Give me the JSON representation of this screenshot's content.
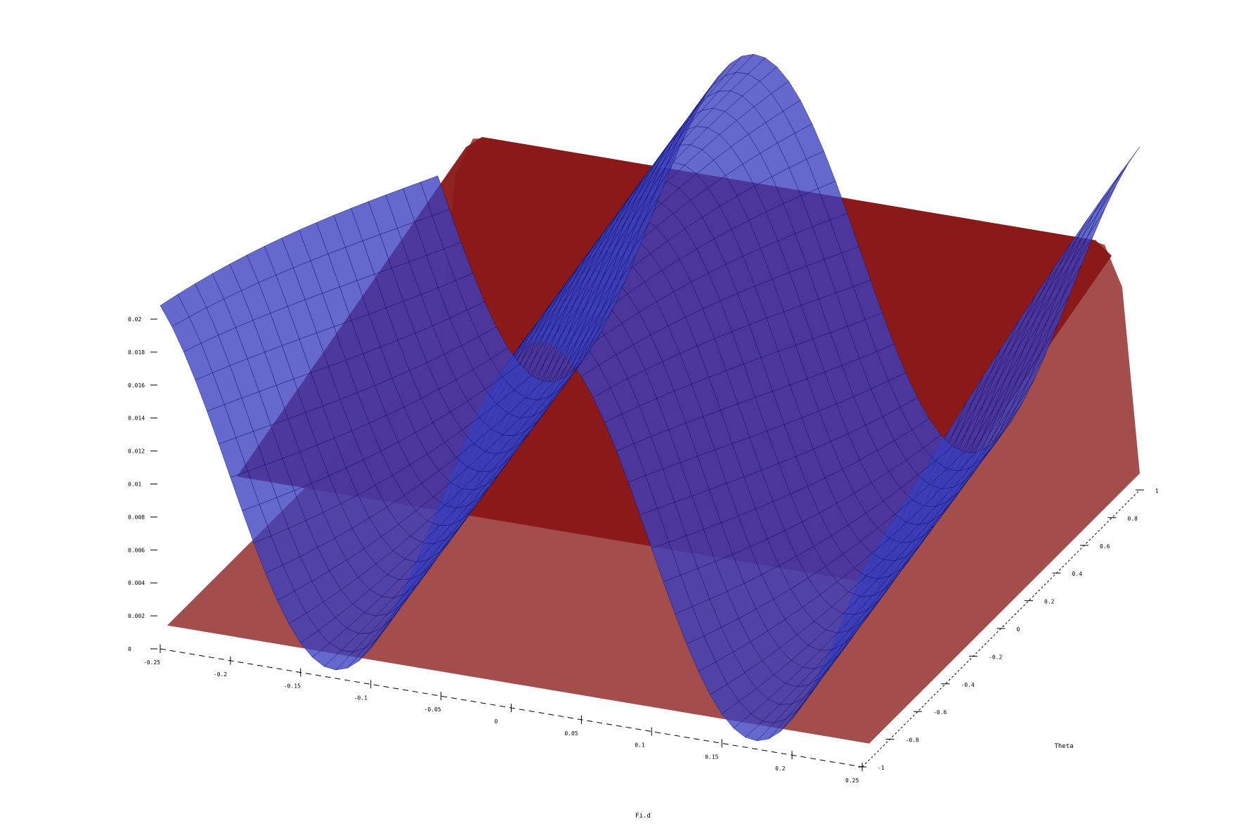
{
  "chart_data": {
    "type": "surface3d",
    "title": "",
    "xlabel": "Fi.d",
    "ylabel": "Theta",
    "zlabel": "",
    "x_ticks": [
      "-0.25",
      "-0.2",
      "-0.15",
      "-0.1",
      "-0.05",
      "0",
      "0.05",
      "0.1",
      "0.15",
      "0.2",
      "0.25"
    ],
    "y_ticks": [
      "-1",
      "-0.8",
      "-0.6",
      "-0.4",
      "-0.2",
      "0",
      "0.2",
      "0.4",
      "0.6",
      "0.8",
      "1"
    ],
    "z_ticks": [
      "0",
      "0.002",
      "0.004",
      "0.006",
      "0.008",
      "0.01",
      "0.012",
      "0.014",
      "0.016",
      "0.018",
      "0.02"
    ],
    "xlim": [
      -0.25,
      0.25
    ],
    "ylim": [
      -1,
      1
    ],
    "zlim": [
      0,
      0.02
    ],
    "series": [
      {
        "color": "#3a3fc0",
        "z_formula": "0.0115 + 0.011*cos(2*pi*(x + 0.0233*y)/0.3)",
        "z_range": [
          0.0005,
          0.0225
        ]
      },
      {
        "color": "#8b0000",
        "z_plateau_back": 0.0147,
        "z_plateau_front": 0.0078,
        "z_floor": 0.001
      }
    ],
    "grid": false,
    "legend": "none"
  }
}
